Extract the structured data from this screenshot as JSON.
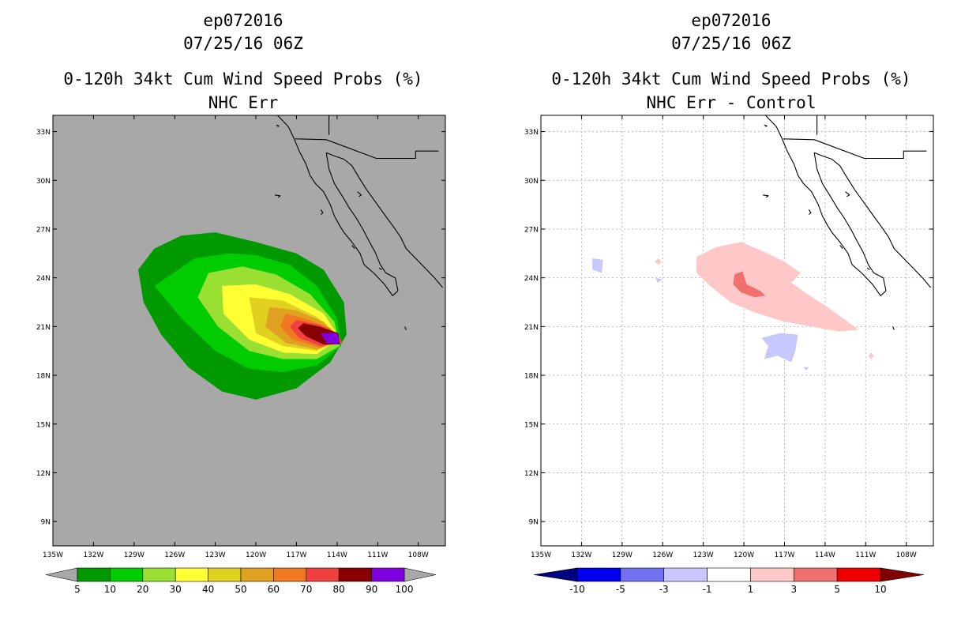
{
  "panels": [
    {
      "storm_id": "ep072016",
      "datetime": "07/25/16 06Z",
      "title": "0-120h 34kt Cum Wind Speed Probs (%)",
      "subtitle": "NHC Err",
      "background": "#a8a8a8"
    },
    {
      "storm_id": "ep072016",
      "datetime": "07/25/16 06Z",
      "title": "0-120h 34kt Cum Wind Speed Probs (%)",
      "subtitle": "NHC Err - Control",
      "background": "#ffffff"
    }
  ],
  "chart_data": [
    {
      "type": "contour-map",
      "title": "0-120h 34kt Cum Wind Speed Probs (%)",
      "subtitle": "NHC Err",
      "lon_range": [
        -135,
        -106
      ],
      "lat_range": [
        7.5,
        34
      ],
      "x_ticks": [
        "135W",
        "132W",
        "129W",
        "126W",
        "123W",
        "120W",
        "117W",
        "114W",
        "111W",
        "108W"
      ],
      "x_tick_values": [
        -135,
        -132,
        -129,
        -126,
        -123,
        -120,
        -117,
        -114,
        -111,
        -108
      ],
      "y_ticks": [
        "9N",
        "12N",
        "15N",
        "18N",
        "21N",
        "24N",
        "27N",
        "30N",
        "33N"
      ],
      "y_tick_values": [
        9,
        12,
        15,
        18,
        21,
        24,
        27,
        30,
        33
      ],
      "grid": false,
      "colorbar": {
        "labels": [
          "5",
          "10",
          "20",
          "30",
          "40",
          "50",
          "60",
          "70",
          "80",
          "90",
          "100"
        ],
        "colors": [
          "#009900",
          "#00cc00",
          "#99e033",
          "#ffff33",
          "#e0d020",
          "#e0a020",
          "#f07820",
          "#f04040",
          "#880000",
          "#8000e0"
        ],
        "end_color": "#a8a8a8"
      },
      "contours": [
        {
          "level": 5,
          "color": "#009900",
          "points": [
            [
              -123,
              26.8
            ],
            [
              -120,
              26.2
            ],
            [
              -117,
              25.5
            ],
            [
              -115,
              24.5
            ],
            [
              -113.5,
              22.5
            ],
            [
              -113.3,
              20.5
            ],
            [
              -114.5,
              18.8
            ],
            [
              -117,
              17.2
            ],
            [
              -120,
              16.5
            ],
            [
              -122.5,
              17
            ],
            [
              -125,
              18.5
            ],
            [
              -127,
              20.5
            ],
            [
              -128.3,
              22.5
            ],
            [
              -128.7,
              24.5
            ],
            [
              -127.5,
              25.8
            ],
            [
              -125.5,
              26.6
            ]
          ]
        },
        {
          "level": 10,
          "color": "#00cc00",
          "points": [
            [
              -124.5,
              25.2
            ],
            [
              -122,
              25.5
            ],
            [
              -120,
              25.4
            ],
            [
              -117.5,
              24.8
            ],
            [
              -115.5,
              23.5
            ],
            [
              -114,
              21.5
            ],
            [
              -113.7,
              19.8
            ],
            [
              -115.5,
              18.6
            ],
            [
              -118,
              18.2
            ],
            [
              -120.5,
              18.4
            ],
            [
              -123,
              19.5
            ],
            [
              -125.5,
              21.5
            ],
            [
              -127.5,
              23.5
            ]
          ]
        },
        {
          "level": 20,
          "color": "#99e033",
          "points": [
            [
              -123.5,
              24.3
            ],
            [
              -121,
              24.7
            ],
            [
              -118.5,
              24.2
            ],
            [
              -116,
              23
            ],
            [
              -114.2,
              21.3
            ],
            [
              -113.8,
              19.8
            ],
            [
              -115.5,
              19
            ],
            [
              -118,
              19
            ],
            [
              -120.5,
              19.5
            ],
            [
              -122.8,
              21
            ],
            [
              -124.3,
              22.8
            ]
          ]
        },
        {
          "level": 30,
          "color": "#ffff33",
          "points": [
            [
              -122.5,
              23.5
            ],
            [
              -120,
              23.6
            ],
            [
              -117.5,
              23
            ],
            [
              -115,
              21.8
            ],
            [
              -113.8,
              20.3
            ],
            [
              -115.5,
              19.3
            ],
            [
              -118,
              19.4
            ],
            [
              -120.5,
              20.2
            ],
            [
              -122.4,
              21.8
            ]
          ]
        },
        {
          "level": 40,
          "color": "#e0d020",
          "points": [
            [
              -120.5,
              22.8
            ],
            [
              -118,
              22.6
            ],
            [
              -115.5,
              21.6
            ],
            [
              -113.8,
              20.3
            ],
            [
              -115.5,
              19.5
            ],
            [
              -118,
              19.8
            ],
            [
              -120,
              20.6
            ]
          ]
        },
        {
          "level": 50,
          "color": "#e0a020",
          "points": [
            [
              -119,
              22.2
            ],
            [
              -117,
              22
            ],
            [
              -115,
              21.3
            ],
            [
              -113.8,
              20.2
            ],
            [
              -115.5,
              19.6
            ],
            [
              -117.8,
              20
            ],
            [
              -119.3,
              21
            ]
          ]
        },
        {
          "level": 60,
          "color": "#f07820",
          "points": [
            [
              -117.8,
              21.8
            ],
            [
              -116,
              21.4
            ],
            [
              -114.5,
              20.9
            ],
            [
              -113.7,
              20.1
            ],
            [
              -115.2,
              19.7
            ],
            [
              -117.3,
              20.2
            ],
            [
              -118.2,
              21
            ]
          ]
        },
        {
          "level": 70,
          "color": "#f04040",
          "points": [
            [
              -117,
              21.4
            ],
            [
              -115.3,
              21.1
            ],
            [
              -114,
              20.6
            ],
            [
              -113.6,
              20
            ],
            [
              -115.2,
              19.8
            ],
            [
              -116.8,
              20.3
            ],
            [
              -117.5,
              21
            ]
          ]
        },
        {
          "level": 80,
          "color": "#880000",
          "points": [
            [
              -116.5,
              21.2
            ],
            [
              -115.3,
              21
            ],
            [
              -113.9,
              20.6
            ],
            [
              -113.8,
              19.9
            ],
            [
              -115,
              19.9
            ],
            [
              -116.3,
              20.4
            ],
            [
              -116.9,
              20.9
            ]
          ]
        },
        {
          "level": 90,
          "color": "#8000e0",
          "points": [
            [
              -115.2,
              20.6
            ],
            [
              -114,
              20.6
            ],
            [
              -113.85,
              20.2
            ],
            [
              -113.9,
              19.9
            ],
            [
              -114.8,
              20
            ]
          ]
        }
      ]
    },
    {
      "type": "contour-map",
      "title": "0-120h 34kt Cum Wind Speed Probs (%)",
      "subtitle": "NHC Err - Control",
      "lon_range": [
        -135,
        -106
      ],
      "lat_range": [
        7.5,
        34
      ],
      "x_ticks": [
        "135W",
        "132W",
        "129W",
        "126W",
        "123W",
        "120W",
        "117W",
        "114W",
        "111W",
        "108W"
      ],
      "x_tick_values": [
        -135,
        -132,
        -129,
        -126,
        -123,
        -120,
        -117,
        -114,
        -111,
        -108
      ],
      "y_ticks": [
        "9N",
        "12N",
        "15N",
        "18N",
        "21N",
        "24N",
        "27N",
        "30N",
        "33N"
      ],
      "y_tick_values": [
        9,
        12,
        15,
        18,
        21,
        24,
        27,
        30,
        33
      ],
      "grid": true,
      "colorbar": {
        "labels": [
          "-10",
          "-5",
          "-3",
          "-1",
          "1",
          "3",
          "5",
          "10"
        ],
        "colors": [
          "#000080",
          "#0000ee",
          "#7070f0",
          "#c8c8ff",
          "#ffffff",
          "#ffc8c8",
          "#f07070",
          "#ee0000",
          "#800000"
        ],
        "end_color": null
      },
      "contours": [
        {
          "level": 1,
          "color": "#ffc8c8",
          "points": [
            [
              -123.5,
              25.3
            ],
            [
              -122,
              25.9
            ],
            [
              -120.2,
              26.2
            ],
            [
              -118.5,
              25.6
            ],
            [
              -117,
              25
            ],
            [
              -115.8,
              24.3
            ],
            [
              -116.5,
              23.7
            ],
            [
              -115.3,
              23
            ],
            [
              -114,
              22.3
            ],
            [
              -112.5,
              21.4
            ],
            [
              -111.5,
              20.8
            ],
            [
              -113,
              20.7
            ],
            [
              -115,
              21
            ],
            [
              -117,
              21.3
            ],
            [
              -119,
              21.8
            ],
            [
              -121,
              22.5
            ],
            [
              -122.5,
              23.5
            ],
            [
              -123.5,
              24.3
            ]
          ]
        },
        {
          "level": 1,
          "color": "#ffc8c8",
          "points": [
            [
              -126.6,
              25
            ],
            [
              -126.3,
              25.2
            ],
            [
              -126.1,
              25
            ],
            [
              -126.3,
              24.8
            ]
          ]
        },
        {
          "level": 1,
          "color": "#ffc8c8",
          "points": [
            [
              -110.8,
              19.2
            ],
            [
              -110.6,
              19.4
            ],
            [
              -110.4,
              19.2
            ],
            [
              -110.6,
              19
            ]
          ]
        },
        {
          "level": 3,
          "color": "#f07070",
          "points": [
            [
              -120.7,
              24.2
            ],
            [
              -120.1,
              24.4
            ],
            [
              -119.8,
              23.6
            ],
            [
              -118.8,
              23.2
            ],
            [
              -118.4,
              22.9
            ],
            [
              -119.2,
              22.8
            ],
            [
              -120.2,
              23.1
            ],
            [
              -120.8,
              23.6
            ]
          ]
        },
        {
          "level": -1,
          "color": "#c8c8ff",
          "points": [
            [
              -131.2,
              25.2
            ],
            [
              -130.4,
              25.1
            ],
            [
              -130.5,
              24.3
            ],
            [
              -131.2,
              24.5
            ]
          ]
        },
        {
          "level": -1,
          "color": "#c8c8ff",
          "points": [
            [
              -126.5,
              24
            ],
            [
              -126,
              23.9
            ],
            [
              -126.4,
              23.7
            ]
          ]
        },
        {
          "level": -1,
          "color": "#c8c8ff",
          "points": [
            [
              -118.7,
              20.3
            ],
            [
              -117.3,
              20.6
            ],
            [
              -116,
              20.5
            ],
            [
              -116.2,
              19.5
            ],
            [
              -116.5,
              18.8
            ],
            [
              -117.5,
              19.2
            ],
            [
              -118.5,
              19
            ],
            [
              -118.2,
              19.8
            ]
          ]
        },
        {
          "level": -1,
          "color": "#c8c8ff",
          "points": [
            [
              -115.6,
              18.5
            ],
            [
              -115.2,
              18.5
            ],
            [
              -115.4,
              18.3
            ]
          ]
        }
      ]
    }
  ]
}
